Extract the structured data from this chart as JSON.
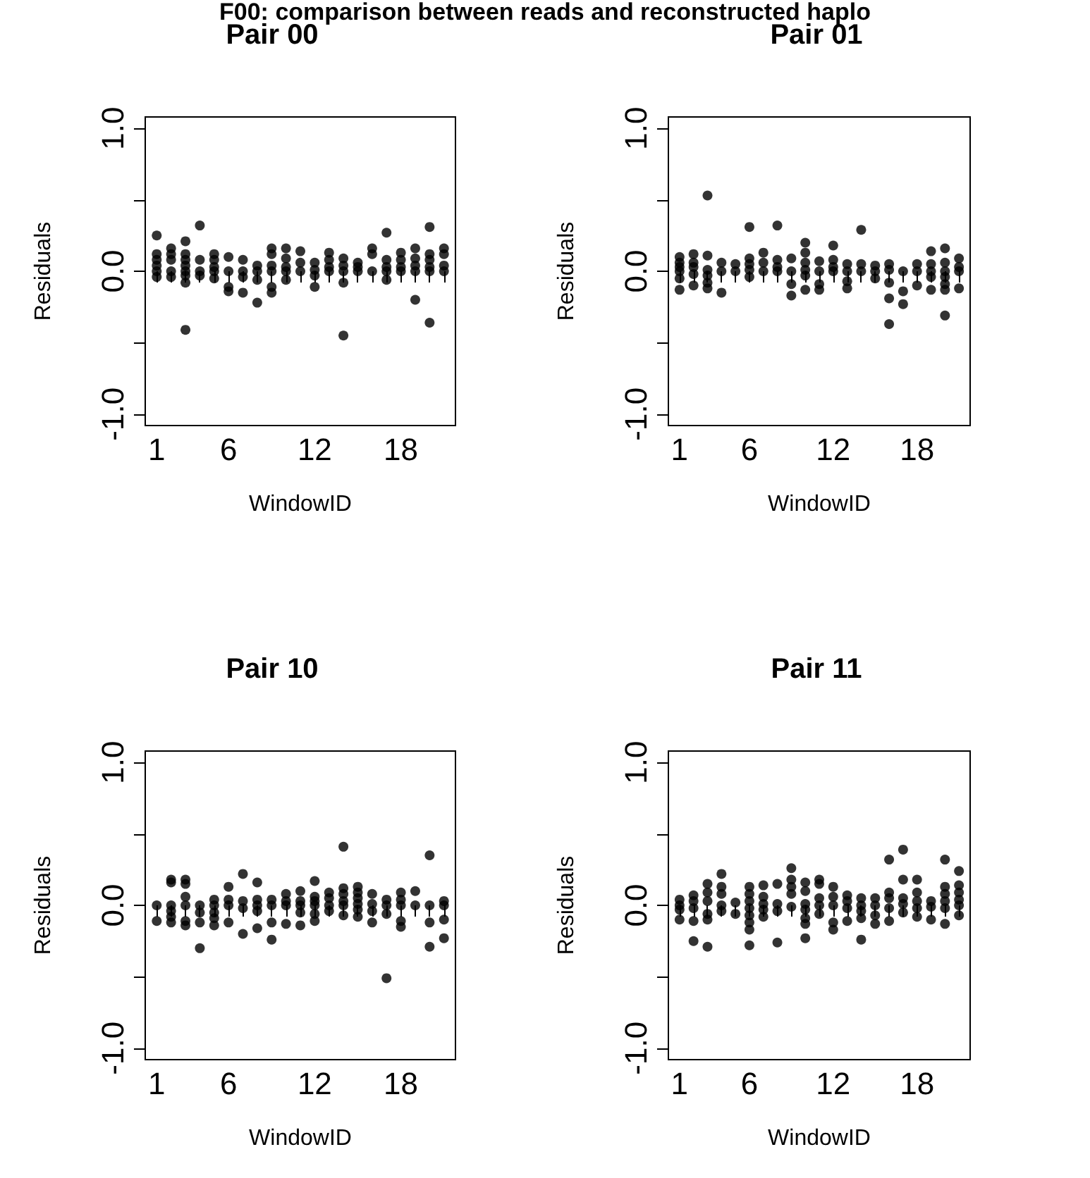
{
  "chart_data": [
    {
      "type": "scatter",
      "title": "Pair 00",
      "xlabel": "WindowID",
      "ylabel": "Residuals",
      "annotations": [
        "F00: comparison between reads and reconstructed haplo"
      ],
      "marker": "circle",
      "grid": false,
      "xlim": [
        0.2,
        21.8
      ],
      "ylim": [
        -1.08,
        1.08
      ],
      "xticks": [
        1,
        {
          "value": 2,
          "label": null
        },
        {
          "value": 3,
          "label": null
        },
        {
          "value": 4,
          "label": null
        },
        {
          "value": 5,
          "label": null
        },
        6,
        {
          "value": 7,
          "label": null
        },
        {
          "value": 8,
          "label": null
        },
        {
          "value": 9,
          "label": null
        },
        {
          "value": 10,
          "label": null
        },
        {
          "value": 11,
          "label": null
        },
        12,
        {
          "value": 13,
          "label": null
        },
        {
          "value": 14,
          "label": null
        },
        {
          "value": 15,
          "label": null
        },
        {
          "value": 16,
          "label": null
        },
        {
          "value": 17,
          "label": null
        },
        18,
        {
          "value": 19,
          "label": null
        },
        {
          "value": 20,
          "label": null
        },
        {
          "value": 21,
          "label": null
        }
      ],
      "yticks": [
        {
          "value": -1,
          "label": "-1.0"
        },
        {
          "value": -0.5,
          "label": null
        },
        {
          "value": 0,
          "label": "0.0"
        },
        {
          "value": 0.5,
          "label": null
        },
        {
          "value": 1,
          "label": "1.0"
        }
      ],
      "series": [
        {
          "color": "#000000",
          "x": [
            1,
            1,
            1,
            1,
            1,
            1,
            2,
            2,
            2,
            2,
            2,
            3,
            3,
            3,
            3,
            3,
            3,
            3,
            3,
            4,
            4,
            4,
            4,
            5,
            5,
            5,
            5,
            5,
            6,
            6,
            6,
            6,
            7,
            7,
            7,
            7,
            8,
            8,
            8,
            8,
            9,
            9,
            9,
            9,
            9,
            9,
            10,
            10,
            10,
            10,
            10,
            11,
            11,
            11,
            12,
            12,
            12,
            12,
            13,
            13,
            13,
            13,
            14,
            14,
            14,
            14,
            14,
            15,
            15,
            15,
            16,
            16,
            16,
            17,
            17,
            17,
            17,
            17,
            18,
            18,
            18,
            18,
            19,
            19,
            19,
            19,
            19,
            20,
            20,
            20,
            20,
            20,
            20,
            21,
            21,
            21,
            21
          ],
          "values": [
            0.25,
            0.12,
            0.08,
            0.04,
            0,
            -0.04,
            0.16,
            0.12,
            0.08,
            0,
            -0.04,
            0.21,
            0.12,
            0.08,
            0.04,
            0,
            -0.03,
            -0.08,
            -0.41,
            0.32,
            0.08,
            0,
            -0.03,
            0.12,
            0.08,
            0.03,
            0,
            -0.05,
            0.1,
            0,
            -0.11,
            -0.14,
            0.08,
            0,
            -0.04,
            -0.15,
            0.04,
            0,
            -0.06,
            -0.22,
            0.16,
            0.12,
            0.04,
            0,
            -0.11,
            -0.15,
            0.16,
            0.09,
            0.03,
            0,
            -0.06,
            0.14,
            0.06,
            0,
            0.06,
            0.01,
            -0.03,
            -0.11,
            0.13,
            0.08,
            0.03,
            0,
            0.09,
            0.04,
            0,
            -0.08,
            -0.45,
            0.06,
            0.03,
            0,
            0.16,
            0.12,
            0,
            0.27,
            0.08,
            0.03,
            0,
            -0.06,
            0.13,
            0.08,
            0.03,
            0,
            0.16,
            0.09,
            0.04,
            0,
            -0.2,
            0.31,
            0.12,
            0.08,
            0.03,
            0,
            -0.36,
            0.16,
            0.12,
            0.04,
            0
          ]
        }
      ]
    },
    {
      "type": "scatter",
      "title": "Pair 01",
      "xlabel": "WindowID",
      "ylabel": "Residuals",
      "marker": "circle",
      "grid": false,
      "xlim": [
        0.2,
        21.8
      ],
      "ylim": [
        -1.08,
        1.08
      ],
      "xticks": [
        1,
        {
          "value": 2,
          "label": null
        },
        {
          "value": 3,
          "label": null
        },
        {
          "value": 4,
          "label": null
        },
        {
          "value": 5,
          "label": null
        },
        6,
        {
          "value": 7,
          "label": null
        },
        {
          "value": 8,
          "label": null
        },
        {
          "value": 9,
          "label": null
        },
        {
          "value": 10,
          "label": null
        },
        {
          "value": 11,
          "label": null
        },
        12,
        {
          "value": 13,
          "label": null
        },
        {
          "value": 14,
          "label": null
        },
        {
          "value": 15,
          "label": null
        },
        {
          "value": 16,
          "label": null
        },
        {
          "value": 17,
          "label": null
        },
        18,
        {
          "value": 19,
          "label": null
        },
        {
          "value": 20,
          "label": null
        },
        {
          "value": 21,
          "label": null
        }
      ],
      "yticks": [
        {
          "value": -1,
          "label": "-1.0"
        },
        {
          "value": -0.5,
          "label": null
        },
        {
          "value": 0,
          "label": "0.0"
        },
        {
          "value": 0.5,
          "label": null
        },
        {
          "value": 1,
          "label": "1.0"
        }
      ],
      "series": [
        {
          "color": "#000000",
          "x": [
            1,
            1,
            1,
            1,
            1,
            1,
            2,
            2,
            2,
            2,
            2,
            3,
            3,
            3,
            3,
            3,
            3,
            4,
            4,
            4,
            5,
            5,
            6,
            6,
            6,
            6,
            6,
            7,
            7,
            7,
            8,
            8,
            8,
            8,
            9,
            9,
            9,
            9,
            10,
            10,
            10,
            10,
            10,
            10,
            11,
            11,
            11,
            11,
            12,
            12,
            12,
            12,
            13,
            13,
            13,
            13,
            14,
            14,
            14,
            15,
            15,
            15,
            16,
            16,
            16,
            16,
            16,
            17,
            17,
            17,
            18,
            18,
            18,
            19,
            19,
            19,
            19,
            19,
            20,
            20,
            20,
            20,
            20,
            20,
            20,
            21,
            21,
            21,
            21
          ],
          "values": [
            0.1,
            0.06,
            0.03,
            0,
            -0.05,
            -0.13,
            0.12,
            0.06,
            0.03,
            -0.02,
            -0.1,
            0.53,
            0.11,
            0.01,
            -0.03,
            -0.08,
            -0.12,
            0.06,
            0,
            -0.15,
            0.05,
            0,
            0.31,
            0.09,
            0.05,
            0.01,
            -0.04,
            0.13,
            0.06,
            0,
            0.32,
            0.08,
            0.03,
            0,
            0.09,
            0,
            -0.09,
            -0.17,
            0.2,
            0.13,
            0.06,
            0.01,
            -0.03,
            -0.13,
            0.07,
            0,
            -0.09,
            -0.13,
            0.18,
            0.08,
            0.03,
            0,
            0.05,
            0,
            -0.07,
            -0.12,
            0.29,
            0.05,
            0,
            0.04,
            0,
            -0.05,
            0.05,
            0.01,
            -0.08,
            -0.19,
            -0.37,
            0,
            -0.14,
            -0.23,
            0.05,
            0,
            -0.1,
            0.14,
            0.05,
            0,
            -0.04,
            -0.13,
            0.16,
            0.06,
            0,
            -0.04,
            -0.09,
            -0.13,
            -0.31,
            0.09,
            0.03,
            0,
            -0.12
          ]
        }
      ]
    },
    {
      "type": "scatter",
      "title": "Pair 10",
      "xlabel": "WindowID",
      "ylabel": "Residuals",
      "marker": "circle",
      "grid": false,
      "xlim": [
        0.2,
        21.8
      ],
      "ylim": [
        -1.08,
        1.08
      ],
      "xticks": [
        1,
        {
          "value": 2,
          "label": null
        },
        {
          "value": 3,
          "label": null
        },
        {
          "value": 4,
          "label": null
        },
        {
          "value": 5,
          "label": null
        },
        6,
        {
          "value": 7,
          "label": null
        },
        {
          "value": 8,
          "label": null
        },
        {
          "value": 9,
          "label": null
        },
        {
          "value": 10,
          "label": null
        },
        {
          "value": 11,
          "label": null
        },
        12,
        {
          "value": 13,
          "label": null
        },
        {
          "value": 14,
          "label": null
        },
        {
          "value": 15,
          "label": null
        },
        {
          "value": 16,
          "label": null
        },
        {
          "value": 17,
          "label": null
        },
        18,
        {
          "value": 19,
          "label": null
        },
        {
          "value": 20,
          "label": null
        },
        {
          "value": 21,
          "label": null
        }
      ],
      "yticks": [
        {
          "value": -1,
          "label": "-1.0"
        },
        {
          "value": -0.5,
          "label": null
        },
        {
          "value": 0,
          "label": "0.0"
        },
        {
          "value": 0.5,
          "label": null
        },
        {
          "value": 1,
          "label": "1.0"
        }
      ],
      "series": [
        {
          "color": "#000000",
          "x": [
            1,
            1,
            2,
            2,
            2,
            2,
            2,
            2,
            3,
            3,
            3,
            3,
            3,
            3,
            4,
            4,
            4,
            4,
            5,
            5,
            5,
            5,
            5,
            6,
            6,
            6,
            6,
            7,
            7,
            7,
            7,
            8,
            8,
            8,
            8,
            8,
            9,
            9,
            9,
            9,
            10,
            10,
            10,
            10,
            11,
            11,
            11,
            11,
            11,
            12,
            12,
            12,
            12,
            12,
            12,
            13,
            13,
            13,
            13,
            14,
            14,
            14,
            14,
            14,
            14,
            15,
            15,
            15,
            15,
            15,
            15,
            16,
            16,
            16,
            16,
            17,
            17,
            17,
            17,
            18,
            18,
            18,
            18,
            18,
            19,
            19,
            20,
            20,
            20,
            20,
            21,
            21,
            21,
            21
          ],
          "values": [
            0,
            -0.11,
            0.18,
            0.16,
            0,
            -0.04,
            -0.08,
            -0.12,
            0.18,
            0.15,
            0.06,
            0,
            -0.11,
            -0.14,
            0,
            -0.05,
            -0.12,
            -0.3,
            0.04,
            0,
            -0.05,
            -0.09,
            -0.14,
            0.13,
            0.04,
            0,
            -0.12,
            0.22,
            0.03,
            -0.02,
            -0.2,
            0.16,
            0.04,
            0,
            -0.04,
            -0.16,
            0.04,
            0,
            -0.12,
            -0.24,
            0.08,
            0.03,
            0,
            -0.13,
            0.1,
            0.03,
            0,
            -0.05,
            -0.14,
            0.17,
            0.06,
            0.03,
            0,
            -0.06,
            -0.11,
            0.09,
            0.05,
            0,
            -0.04,
            0.41,
            0.12,
            0.08,
            0.03,
            0,
            -0.07,
            0.13,
            0.09,
            0.05,
            0.01,
            -0.03,
            -0.08,
            0.08,
            0.01,
            -0.04,
            -0.12,
            0.04,
            0,
            -0.06,
            -0.51,
            0.09,
            0.04,
            0,
            -0.11,
            -0.15,
            0.1,
            0,
            0.35,
            0,
            -0.12,
            -0.29,
            0.03,
            0,
            -0.1,
            -0.23
          ]
        }
      ]
    },
    {
      "type": "scatter",
      "title": "Pair 11",
      "xlabel": "WindowID",
      "ylabel": "Residuals",
      "marker": "circle",
      "grid": false,
      "xlim": [
        0.2,
        21.8
      ],
      "ylim": [
        -1.08,
        1.08
      ],
      "xticks": [
        1,
        {
          "value": 2,
          "label": null
        },
        {
          "value": 3,
          "label": null
        },
        {
          "value": 4,
          "label": null
        },
        {
          "value": 5,
          "label": null
        },
        6,
        {
          "value": 7,
          "label": null
        },
        {
          "value": 8,
          "label": null
        },
        {
          "value": 9,
          "label": null
        },
        {
          "value": 10,
          "label": null
        },
        {
          "value": 11,
          "label": null
        },
        12,
        {
          "value": 13,
          "label": null
        },
        {
          "value": 14,
          "label": null
        },
        {
          "value": 15,
          "label": null
        },
        {
          "value": 16,
          "label": null
        },
        {
          "value": 17,
          "label": null
        },
        18,
        {
          "value": 19,
          "label": null
        },
        {
          "value": 20,
          "label": null
        },
        {
          "value": 21,
          "label": null
        }
      ],
      "yticks": [
        {
          "value": -1,
          "label": "-1.0"
        },
        {
          "value": -0.5,
          "label": null
        },
        {
          "value": 0,
          "label": "0.0"
        },
        {
          "value": 0.5,
          "label": null
        },
        {
          "value": 1,
          "label": "1.0"
        }
      ],
      "series": [
        {
          "color": "#000000",
          "x": [
            1,
            1,
            1,
            1,
            2,
            2,
            2,
            2,
            2,
            3,
            3,
            3,
            3,
            3,
            3,
            4,
            4,
            4,
            4,
            4,
            5,
            5,
            6,
            6,
            6,
            6,
            6,
            6,
            6,
            6,
            7,
            7,
            7,
            7,
            7,
            8,
            8,
            8,
            8,
            9,
            9,
            9,
            9,
            9,
            10,
            10,
            10,
            10,
            10,
            10,
            10,
            11,
            11,
            11,
            11,
            11,
            12,
            12,
            12,
            12,
            12,
            13,
            13,
            13,
            13,
            14,
            14,
            14,
            14,
            14,
            15,
            15,
            15,
            15,
            16,
            16,
            16,
            16,
            16,
            17,
            17,
            17,
            17,
            17,
            18,
            18,
            18,
            18,
            18,
            19,
            19,
            19,
            20,
            20,
            20,
            20,
            20,
            20,
            21,
            21,
            21,
            21,
            21,
            21
          ],
          "values": [
            0.04,
            0,
            -0.03,
            -0.1,
            0.07,
            0.03,
            -0.02,
            -0.11,
            -0.25,
            0.15,
            0.09,
            0.03,
            -0.06,
            -0.1,
            -0.29,
            0.22,
            0.13,
            0.08,
            0,
            -0.04,
            0.02,
            -0.06,
            0.13,
            0.08,
            0.03,
            -0.02,
            -0.07,
            -0.12,
            -0.17,
            -0.28,
            0.14,
            0.06,
            0.01,
            -0.03,
            -0.08,
            0.15,
            0.01,
            -0.04,
            -0.26,
            0.26,
            0.18,
            0.13,
            0.08,
            -0.01,
            0.16,
            0.1,
            0.01,
            -0.03,
            -0.09,
            -0.13,
            -0.23,
            0.18,
            0.15,
            0.05,
            0,
            -0.06,
            0.13,
            0.06,
            0,
            -0.12,
            -0.17,
            0.07,
            0.03,
            -0.02,
            -0.11,
            0.05,
            0,
            -0.04,
            -0.09,
            -0.24,
            0.05,
            0,
            -0.07,
            -0.13,
            0.32,
            0.09,
            0.05,
            -0.02,
            -0.11,
            0.39,
            0.18,
            0.05,
            0.01,
            -0.05,
            0.18,
            0.09,
            0.03,
            -0.02,
            -0.08,
            0.03,
            -0.01,
            -0.1,
            0.32,
            0.13,
            0.08,
            0.03,
            -0.02,
            -0.13,
            0.24,
            0.14,
            0.09,
            0.04,
            0,
            -0.07
          ]
        }
      ]
    }
  ]
}
